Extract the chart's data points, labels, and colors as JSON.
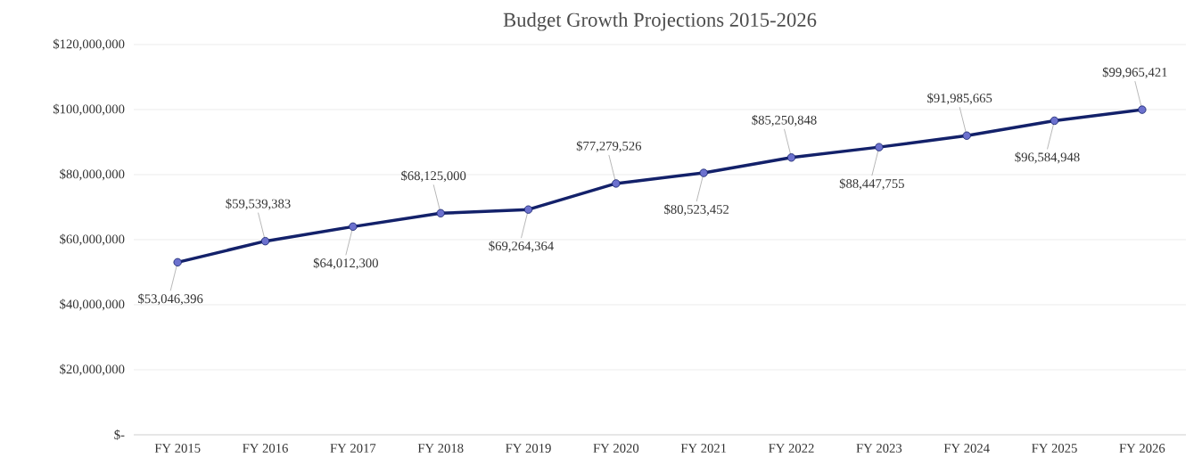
{
  "chart_data": {
    "type": "line",
    "title": "Budget Growth Projections 2015-2026",
    "categories": [
      "FY 2015",
      "FY 2016",
      "FY 2017",
      "FY 2018",
      "FY 2019",
      "FY 2020",
      "FY 2021",
      "FY 2022",
      "FY 2023",
      "FY 2024",
      "FY 2025",
      "FY 2026"
    ],
    "values": [
      53046396,
      59539383,
      64012300,
      68125000,
      69264364,
      77279526,
      80523452,
      85250848,
      88447755,
      91985665,
      96584948,
      99965421
    ],
    "value_labels": [
      "$53,046,396",
      "$59,539,383",
      "$64,012,300",
      "$68,125,000",
      "$69,264,364",
      "$77,279,526",
      "$80,523,452",
      "$85,250,848",
      "$88,447,755",
      "$91,985,665",
      "$96,584,948",
      "$99,965,421"
    ],
    "color": "#13216a",
    "marker": "circle",
    "ylim": [
      0,
      120000000
    ],
    "yticks": [
      {
        "value": 0,
        "label": "$-"
      },
      {
        "value": 20000000,
        "label": "$20,000,000"
      },
      {
        "value": 40000000,
        "label": "$40,000,000"
      },
      {
        "value": 60000000,
        "label": "$60,000,000"
      },
      {
        "value": 80000000,
        "label": "$80,000,000"
      },
      {
        "value": 100000000,
        "label": "$100,000,000"
      },
      {
        "value": 120000000,
        "label": "$120,000,000"
      }
    ],
    "grid": "y"
  }
}
